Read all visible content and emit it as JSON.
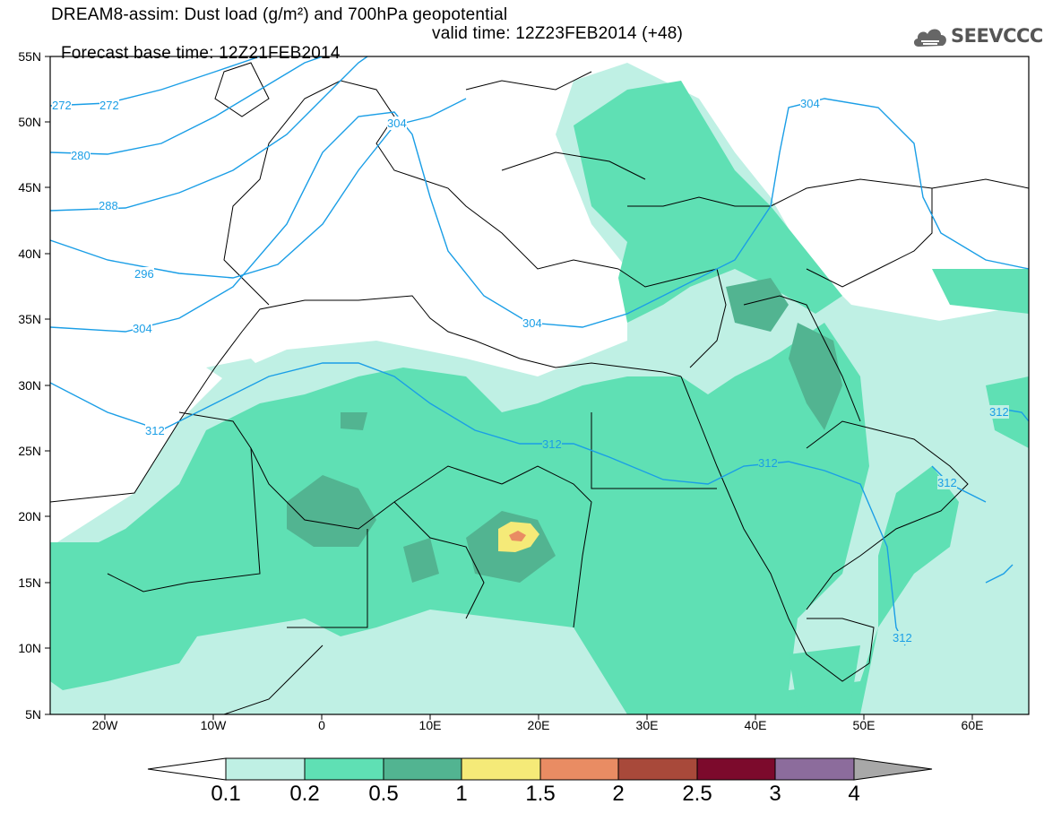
{
  "title": {
    "line1": "DREAM8-assim: Dust load (g/m²) and 700hPa geopotential",
    "base_time": "Forecast base time: 12Z21FEB2014",
    "valid_time": "valid time: 12Z23FEB2014 (+48)"
  },
  "logo": {
    "text": "SEEVCCC",
    "icon": "cloud-icon"
  },
  "axes": {
    "lat_labels": [
      "55N",
      "50N",
      "45N",
      "40N",
      "35N",
      "30N",
      "25N",
      "20N",
      "15N",
      "10N",
      "5N"
    ],
    "lon_labels": [
      "20W",
      "10W",
      "0",
      "10E",
      "20E",
      "30E",
      "40E",
      "50E",
      "60E"
    ],
    "lat_range": [
      5,
      55
    ],
    "lon_range": [
      -25,
      65
    ]
  },
  "contours": {
    "labels": [
      "272",
      "272",
      "280",
      "288",
      "296",
      "304",
      "304",
      "304",
      "304",
      "312",
      "312",
      "312",
      "312",
      "312",
      "312"
    ],
    "color": "#1a9ee6"
  },
  "colorbar": {
    "labels": [
      "0.1",
      "0.2",
      "0.5",
      "1",
      "1.5",
      "2",
      "2.5",
      "3",
      "4"
    ],
    "colors": [
      "#ffffff",
      "#bff0e4",
      "#5fe0b4",
      "#52b491",
      "#f5ea78",
      "#e98c63",
      "#a8493a",
      "#7c0a2c",
      "#8c6c9c",
      "#a8a8a8"
    ]
  }
}
